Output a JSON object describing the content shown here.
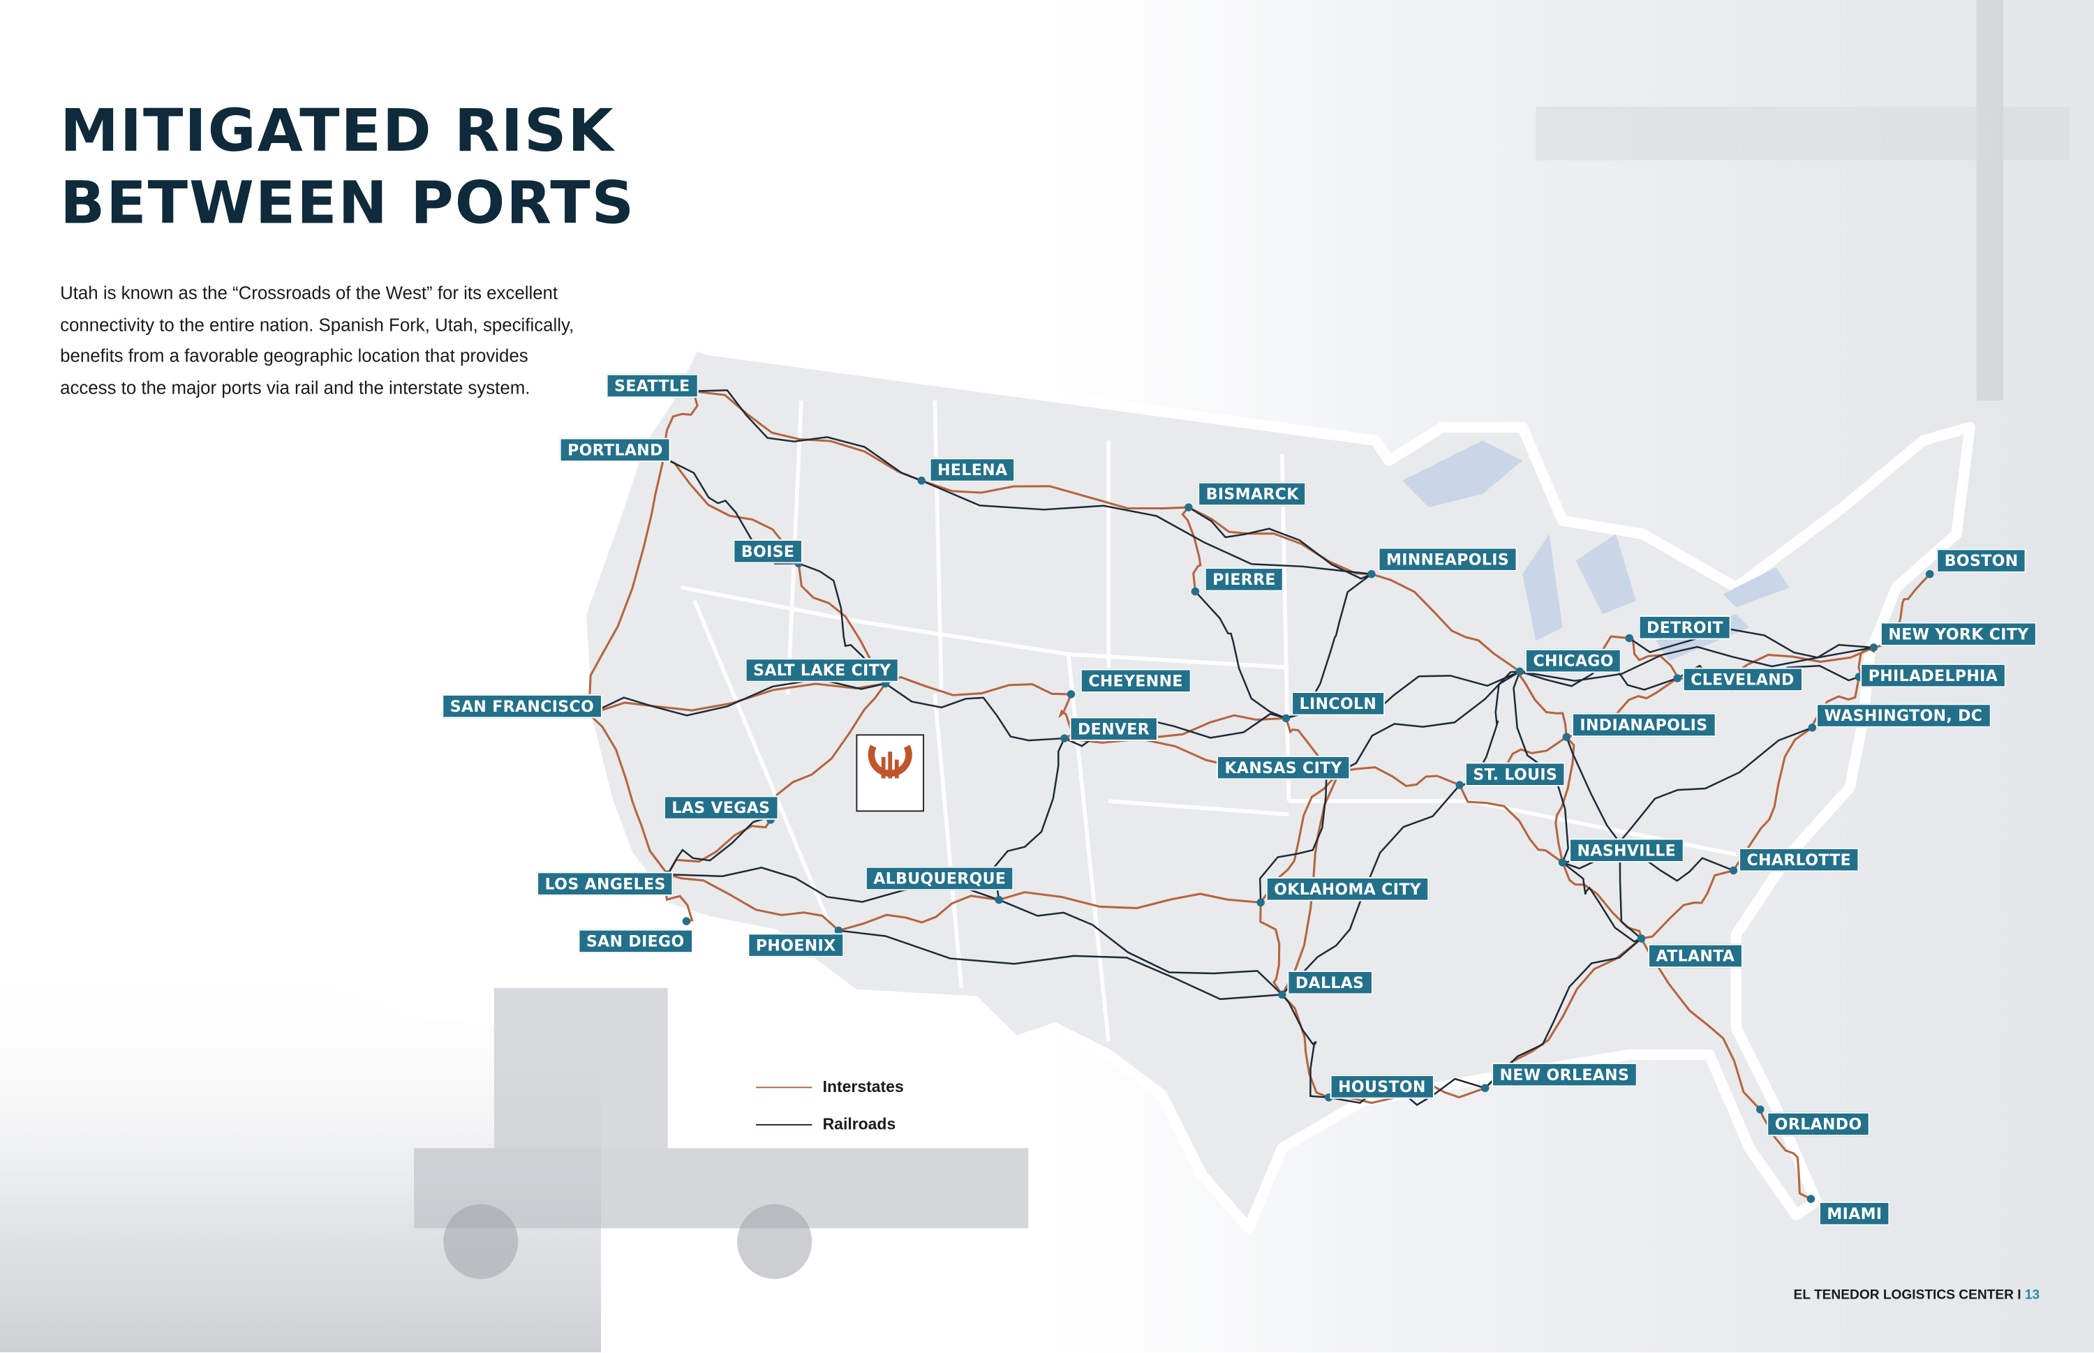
{
  "title_lines": [
    "MITIGATED RISK",
    "BETWEEN PORTS"
  ],
  "body_text": "Utah is known as the “Crossroads of the West” for its excellent connectivity to the entire nation. Spanish Fork, Utah, specifically, benefits from a favorable geographic location that provides access to the major ports via rail and the interstate system.",
  "map": {
    "cities": [
      "SEATTLE",
      "PORTLAND",
      "HELENA",
      "BISMARCK",
      "BOISE",
      "PIERRE",
      "MINNEAPOLIS",
      "SALT LAKE CITY",
      "CHEYENNE",
      "SAN FRANCISCO",
      "DENVER",
      "LINCOLN",
      "CHICAGO",
      "DETROIT",
      "CLEVELAND",
      "BOSTON",
      "NEW YORK CITY",
      "PHILADELPHIA",
      "WASHINGTON, DC",
      "INDIANAPOLIS",
      "KANSAS CITY",
      "ST. LOUIS",
      "LAS VEGAS",
      "LOS ANGELES",
      "NASHVILLE",
      "CHARLOTTE",
      "ALBUQUERQUE",
      "OKLAHOMA CITY",
      "SAN DIEGO",
      "PHOENIX",
      "ATLANTA",
      "DALLAS",
      "NEW ORLEANS",
      "HOUSTON",
      "ORLANDO",
      "MIAMI"
    ],
    "legend": [
      {
        "label": "Interstates",
        "color": "#b5653f"
      },
      {
        "label": "Railroads",
        "color": "#1c2a38"
      }
    ],
    "label_color": "#23708a",
    "logo_text": "EL TENEDOR"
  },
  "footer": {
    "text": "EL TENEDOR LOGISTICS CENTER",
    "separator": "I",
    "page": "13"
  }
}
